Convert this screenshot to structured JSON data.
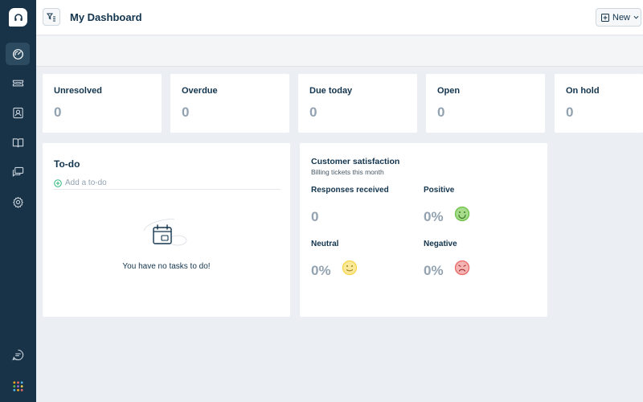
{
  "header": {
    "title": "My Dashboard",
    "new_label": "New"
  },
  "sidebar": {
    "items": [
      {
        "icon": "dashboard-icon",
        "active": true
      },
      {
        "icon": "tickets-icon",
        "active": false
      },
      {
        "icon": "contacts-icon",
        "active": false
      },
      {
        "icon": "knowledge-base-icon",
        "active": false
      },
      {
        "icon": "chat-icon",
        "active": false
      },
      {
        "icon": "gear-icon",
        "active": false
      }
    ],
    "bottom": [
      {
        "icon": "feedback-icon"
      },
      {
        "icon": "apps-grid-icon"
      }
    ]
  },
  "stats": [
    {
      "label": "Unresolved",
      "value": "0"
    },
    {
      "label": "Overdue",
      "value": "0"
    },
    {
      "label": "Due today",
      "value": "0"
    },
    {
      "label": "Open",
      "value": "0"
    },
    {
      "label": "On hold",
      "value": "0"
    }
  ],
  "todo": {
    "title": "To-do",
    "add_placeholder": "Add a to-do",
    "empty_text": "You have no tasks to do!"
  },
  "csat": {
    "title": "Customer satisfaction",
    "subtitle": "Billing tickets this month",
    "metrics": [
      {
        "label": "Responses received",
        "value": "0"
      },
      {
        "label": "Positive",
        "value": "0%",
        "face": "happy-face-icon"
      },
      {
        "label": "Neutral",
        "value": "0%",
        "face": "neutral-face-icon"
      },
      {
        "label": "Negative",
        "value": "0%",
        "face": "sad-face-icon"
      }
    ]
  },
  "colors": {
    "sidebar_bg": "#183247",
    "sidebar_active": "#2c4a60",
    "positive": "#6cc247",
    "neutral": "#f5d54b",
    "negative": "#e86a6a",
    "value_gray": "#92a2b1",
    "add_icon": "#2fb97e"
  }
}
